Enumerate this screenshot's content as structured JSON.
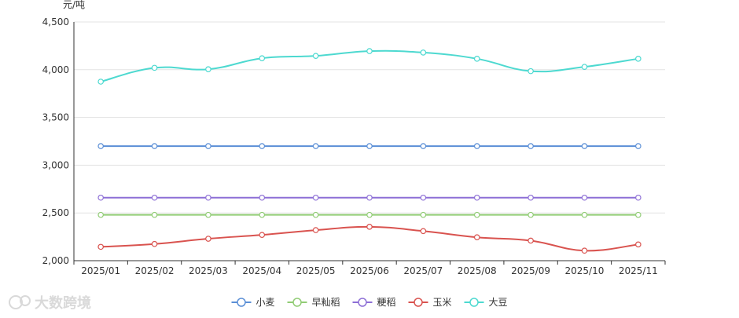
{
  "watermark": "大数跨境",
  "chart_data": {
    "type": "line",
    "title": "",
    "ylabel": "元/吨",
    "xlabel": "",
    "ylim": [
      2000,
      4500
    ],
    "yticks": [
      "2,000",
      "2,500",
      "3,000",
      "3,500",
      "4,000",
      "4,500"
    ],
    "ytick_values": [
      2000,
      2500,
      3000,
      3500,
      4000,
      4500
    ],
    "categories": [
      "2025/01",
      "2025/02",
      "2025/03",
      "2025/04",
      "2025/05",
      "2025/06",
      "2025/07",
      "2025/08",
      "2025/09",
      "2025/10",
      "2025/11"
    ],
    "grid": true,
    "legend_position": "bottom",
    "series": [
      {
        "name": "小麦",
        "color": "#5b8fd6",
        "smooth": false,
        "values": [
          3200,
          3200,
          3200,
          3200,
          3200,
          3200,
          3200,
          3200,
          3200,
          3200,
          3200
        ]
      },
      {
        "name": "早籼稻",
        "color": "#91cc75",
        "smooth": false,
        "values": [
          2480,
          2480,
          2480,
          2480,
          2480,
          2480,
          2480,
          2480,
          2480,
          2480,
          2480
        ]
      },
      {
        "name": "粳稻",
        "color": "#8d6fd6",
        "smooth": false,
        "values": [
          2660,
          2660,
          2660,
          2660,
          2660,
          2660,
          2660,
          2660,
          2660,
          2660,
          2660
        ]
      },
      {
        "name": "玉米",
        "color": "#d9534f",
        "smooth": true,
        "values": [
          2145,
          2175,
          2230,
          2270,
          2320,
          2355,
          2310,
          2245,
          2210,
          2105,
          2170
        ]
      },
      {
        "name": "大豆",
        "color": "#4dd9d0",
        "smooth": true,
        "values": [
          3875,
          4020,
          4005,
          4120,
          4145,
          4195,
          4180,
          4115,
          3985,
          4030,
          4115
        ]
      }
    ]
  }
}
